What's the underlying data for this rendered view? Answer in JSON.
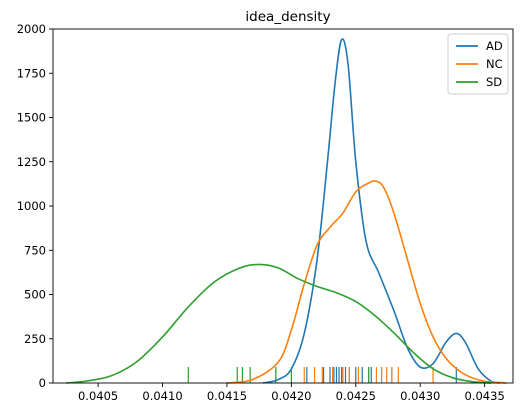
{
  "chart_data": {
    "type": "line",
    "title": "idea_density",
    "xlabel": "",
    "ylabel": "",
    "xlim": [
      0.04015,
      0.04372
    ],
    "ylim": [
      0,
      2000
    ],
    "x_ticks": [
      {
        "value": 0.0405,
        "label": "0.0405"
      },
      {
        "value": 0.041,
        "label": "0.0410"
      },
      {
        "value": 0.0415,
        "label": "0.0415"
      },
      {
        "value": 0.042,
        "label": "0.0420"
      },
      {
        "value": 0.0425,
        "label": "0.0425"
      },
      {
        "value": 0.043,
        "label": "0.0430"
      },
      {
        "value": 0.0435,
        "label": "0.0435"
      }
    ],
    "y_ticks": [
      {
        "value": 0,
        "label": "0"
      },
      {
        "value": 250,
        "label": "250"
      },
      {
        "value": 500,
        "label": "500"
      },
      {
        "value": 750,
        "label": "750"
      },
      {
        "value": 1000,
        "label": "1000"
      },
      {
        "value": 1250,
        "label": "1250"
      },
      {
        "value": 1500,
        "label": "1500"
      },
      {
        "value": 1750,
        "label": "1750"
      },
      {
        "value": 2000,
        "label": "2000"
      }
    ],
    "grid": false,
    "legend_position": "top-right",
    "series": [
      {
        "name": "AD",
        "color": "#1f77b4",
        "points": [
          [
            0.04178,
            0
          ],
          [
            0.0419,
            20
          ],
          [
            0.042,
            80
          ],
          [
            0.0421,
            280
          ],
          [
            0.0422,
            700
          ],
          [
            0.04228,
            1250
          ],
          [
            0.04234,
            1700
          ],
          [
            0.04239,
            1940
          ],
          [
            0.04244,
            1800
          ],
          [
            0.0425,
            1250
          ],
          [
            0.04258,
            800
          ],
          [
            0.04268,
            620
          ],
          [
            0.0428,
            400
          ],
          [
            0.0429,
            200
          ],
          [
            0.043,
            90
          ],
          [
            0.0431,
            110
          ],
          [
            0.0432,
            230
          ],
          [
            0.04328,
            280
          ],
          [
            0.04335,
            230
          ],
          [
            0.04345,
            80
          ],
          [
            0.04355,
            10
          ],
          [
            0.04362,
            0
          ]
        ],
        "rug": [
          0.04188,
          0.04212,
          0.04225,
          0.0423,
          0.04233,
          0.04235,
          0.04237,
          0.04239,
          0.0424,
          0.04242,
          0.04245,
          0.0425,
          0.04255,
          0.04262,
          0.0427,
          0.04278,
          0.04328
        ]
      },
      {
        "name": "NC",
        "color": "#ff7f0e",
        "points": [
          [
            0.0415,
            0
          ],
          [
            0.0417,
            20
          ],
          [
            0.0419,
            120
          ],
          [
            0.042,
            300
          ],
          [
            0.0421,
            560
          ],
          [
            0.0422,
            780
          ],
          [
            0.0423,
            880
          ],
          [
            0.0424,
            960
          ],
          [
            0.0425,
            1080
          ],
          [
            0.0426,
            1130
          ],
          [
            0.04266,
            1140
          ],
          [
            0.04272,
            1100
          ],
          [
            0.0428,
            950
          ],
          [
            0.0429,
            700
          ],
          [
            0.043,
            450
          ],
          [
            0.0431,
            260
          ],
          [
            0.0432,
            140
          ],
          [
            0.0433,
            70
          ],
          [
            0.0434,
            30
          ],
          [
            0.0435,
            10
          ],
          [
            0.04367,
            0
          ]
        ],
        "rug": [
          0.0421,
          0.04218,
          0.04224,
          0.04232,
          0.0424,
          0.04245,
          0.04252,
          0.0426,
          0.04266,
          0.0427,
          0.04274,
          0.04278,
          0.04283,
          0.0431
        ]
      },
      {
        "name": "SD",
        "color": "#2ca02c",
        "points": [
          [
            0.04025,
            0
          ],
          [
            0.0404,
            10
          ],
          [
            0.0406,
            40
          ],
          [
            0.0408,
            120
          ],
          [
            0.041,
            260
          ],
          [
            0.0412,
            430
          ],
          [
            0.0414,
            570
          ],
          [
            0.0416,
            650
          ],
          [
            0.04175,
            670
          ],
          [
            0.0419,
            650
          ],
          [
            0.04205,
            590
          ],
          [
            0.0422,
            545
          ],
          [
            0.04235,
            510
          ],
          [
            0.0425,
            460
          ],
          [
            0.04265,
            380
          ],
          [
            0.0428,
            280
          ],
          [
            0.04295,
            170
          ],
          [
            0.0431,
            80
          ],
          [
            0.04325,
            30
          ],
          [
            0.0434,
            8
          ],
          [
            0.04355,
            0
          ]
        ],
        "rug": [
          0.0412,
          0.04158,
          0.04162,
          0.04168,
          0.04188,
          0.042,
          0.0426
        ]
      }
    ]
  }
}
